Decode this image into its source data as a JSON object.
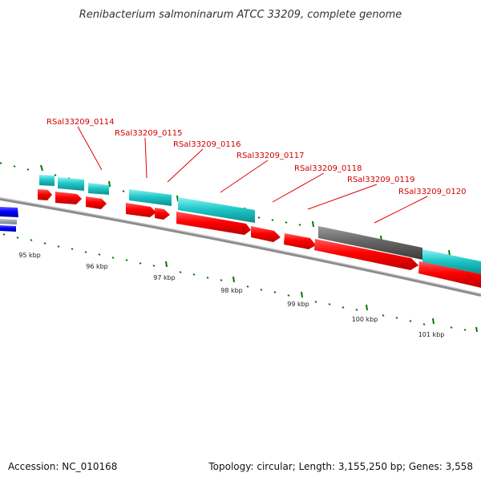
{
  "title": "Renibacterium salmoninarum ATCC 33209, complete genome",
  "accession": "Accession: NC_010168",
  "summary": "Topology: circular; Length: 3,155,250 bp; Genes: 3,558",
  "ticks": [
    "95 kbp",
    "96 kbp",
    "97 kbp",
    "98 kbp",
    "99 kbp",
    "100 kbp",
    "101 kbp"
  ],
  "gene_labels": [
    "RSal33209_0114",
    "RSal33209_0115",
    "RSal33209_0116",
    "RSal33209_0117",
    "RSal33209_0118",
    "RSal33209_0119",
    "RSal33209_0120"
  ],
  "colors": {
    "forward_cds": "#ff0000",
    "cds_feature": "#20c8c8",
    "other_feature": "#0000ff",
    "pseudo_feature": "#666666",
    "backbone": "#888888",
    "tick_marks": "#007700",
    "label": "#d00000"
  }
}
